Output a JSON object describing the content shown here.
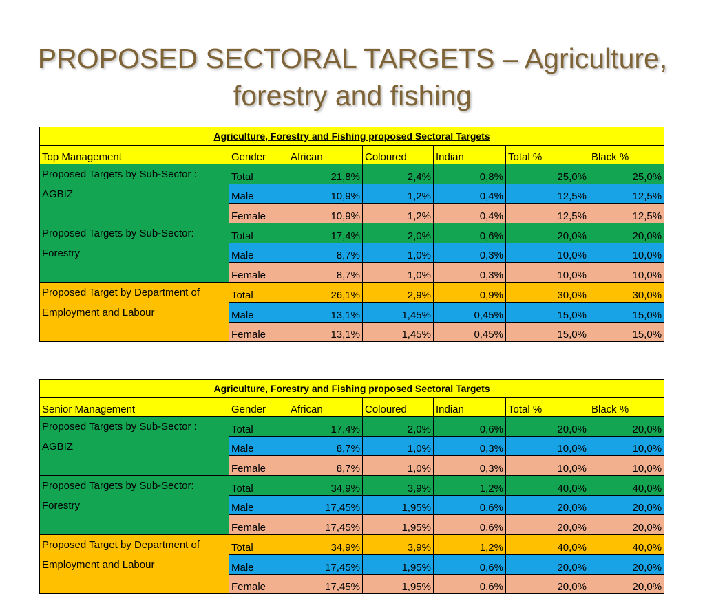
{
  "title_line1": "PROPOSED  SECTORAL TARGETS – Agriculture,",
  "title_line2": "forestry and fishing",
  "tables": [
    {
      "caption": "Agriculture, Forestry and  Fishing proposed Sectoral Targets",
      "level": "Top Management",
      "columns": [
        "Gender",
        "African",
        "Coloured",
        "Indian",
        "Total %",
        "Black %"
      ],
      "groups": [
        {
          "label": "Proposed Targets by Sub-Sector : AGBIZ",
          "rows": [
            {
              "gender": "Total",
              "african": "21,8%",
              "coloured": "2,4%",
              "indian": "0,8%",
              "total": "25,0%",
              "black": "25,0%"
            },
            {
              "gender": "Male",
              "african": "10,9%",
              "coloured": "1,2%",
              "indian": "0,4%",
              "total": "12,5%",
              "black": "12,5%"
            },
            {
              "gender": "Female",
              "african": "10,9%",
              "coloured": "1,2%",
              "indian": "0,4%",
              "total": "12,5%",
              "black": "12,5%"
            }
          ]
        },
        {
          "label": "Proposed Targets by Sub-Sector: Forestry",
          "rows": [
            {
              "gender": "Total",
              "african": "17,4%",
              "coloured": "2,0%",
              "indian": "0,6%",
              "total": "20,0%",
              "black": "20,0%"
            },
            {
              "gender": "Male",
              "african": "8,7%",
              "coloured": "1,0%",
              "indian": "0,3%",
              "total": "10,0%",
              "black": "10,0%"
            },
            {
              "gender": "Female",
              "african": "8,7%",
              "coloured": "1,0%",
              "indian": "0,3%",
              "total": "10,0%",
              "black": "10,0%"
            }
          ]
        },
        {
          "label": "Proposed Target by Department of Employment and Labour",
          "rows": [
            {
              "gender": "Total",
              "african": "26,1%",
              "coloured": "2,9%",
              "indian": "0,9%",
              "total": "30,0%",
              "black": "30,0%"
            },
            {
              "gender": "Male",
              "african": "13,1%",
              "coloured": "1,45%",
              "indian": "0,45%",
              "total": "15,0%",
              "black": "15,0%"
            },
            {
              "gender": "Female",
              "african": "13,1%",
              "coloured": "1,45%",
              "indian": "0,45%",
              "total": "15,0%",
              "black": "15,0%"
            }
          ]
        }
      ]
    },
    {
      "caption": "Agriculture, Forestry and  Fishing proposed Sectoral Targets",
      "level": "Senior  Management",
      "columns": [
        "Gender",
        "African",
        "Coloured",
        "Indian",
        "Total %",
        "Black %"
      ],
      "groups": [
        {
          "label": "Proposed Targets by  Sub-Sector : AGBIZ",
          "rows": [
            {
              "gender": "Total",
              "african": "17,4%",
              "coloured": "2,0%",
              "indian": "0,6%",
              "total": "20,0%",
              "black": "20,0%"
            },
            {
              "gender": "Male",
              "african": "8,7%",
              "coloured": "1,0%",
              "indian": "0,3%",
              "total": "10,0%",
              "black": "10,0%"
            },
            {
              "gender": "Female",
              "african": "8,7%",
              "coloured": "1,0%",
              "indian": "0,3%",
              "total": "10,0%",
              "black": "10,0%"
            }
          ]
        },
        {
          "label": "Proposed Targets by Sub-Sector: Forestry",
          "rows": [
            {
              "gender": "Total",
              "african": "34,9%",
              "coloured": "3,9%",
              "indian": "1,2%",
              "total": "40,0%",
              "black": "40,0%"
            },
            {
              "gender": "Male",
              "african": "17,45%",
              "coloured": "1,95%",
              "indian": "0,6%",
              "total": "20,0%",
              "black": "20,0%"
            },
            {
              "gender": "Female",
              "african": "17,45%",
              "coloured": "1,95%",
              "indian": "0,6%",
              "total": "20,0%",
              "black": "20,0%"
            }
          ]
        },
        {
          "label": "Proposed Target by Department of Employment and Labour",
          "rows": [
            {
              "gender": "Total",
              "african": "34,9%",
              "coloured": "3,9%",
              "indian": "1,2%",
              "total": "40,0%",
              "black": "40,0%"
            },
            {
              "gender": "Male",
              "african": "17,45%",
              "coloured": "1,95%",
              "indian": "0,6%",
              "total": "20,0%",
              "black": "20,0%"
            },
            {
              "gender": "Female",
              "african": "17,45%",
              "coloured": "1,95%",
              "indian": "0,6%",
              "total": "20,0%",
              "black": "20,0%"
            }
          ]
        }
      ]
    }
  ]
}
